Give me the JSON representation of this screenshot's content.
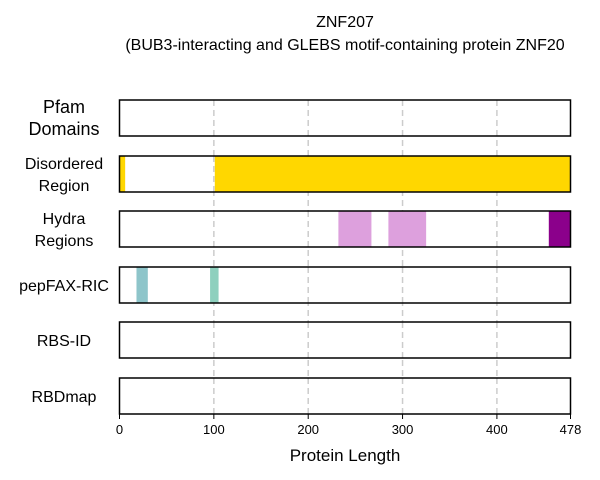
{
  "chart_data": {
    "type": "feature-track",
    "title": "ZNF207",
    "subtitle": "(BUB3-interacting and GLEBS motif-containing protein ZNF20",
    "xlabel": "Protein Length",
    "xlim": [
      0,
      478
    ],
    "x_ticks": [
      "0",
      "100",
      "200",
      "300",
      "400",
      "478"
    ],
    "x_tick_values": [
      0,
      100,
      200,
      300,
      400,
      478
    ],
    "gridlines_at": [
      100,
      200,
      300,
      400
    ],
    "grid": true,
    "tracks": [
      {
        "label_lines": [
          "Pfam",
          "Domains"
        ],
        "segments": []
      },
      {
        "label_lines": [
          "Disordered",
          "Region"
        ],
        "segments": [
          {
            "start": 0,
            "end": 6,
            "color": "#FFD700"
          },
          {
            "start": 101,
            "end": 478,
            "color": "#FFD700"
          }
        ]
      },
      {
        "label_lines": [
          "Hydra",
          "Regions"
        ],
        "segments": [
          {
            "start": 232,
            "end": 267,
            "color": "#DDA0DD"
          },
          {
            "start": 285,
            "end": 325,
            "color": "#DDA0DD"
          },
          {
            "start": 455,
            "end": 478,
            "color": "#8B008B"
          }
        ]
      },
      {
        "label_lines": [
          "pepFAX-RIC"
        ],
        "segments": [
          {
            "start": 18,
            "end": 30,
            "color": "#8EC5CA"
          },
          {
            "start": 96,
            "end": 105,
            "color": "#8ED0BE"
          }
        ]
      },
      {
        "label_lines": [
          "RBS-ID"
        ],
        "segments": []
      },
      {
        "label_lines": [
          "RBDmap"
        ],
        "segments": []
      }
    ]
  }
}
